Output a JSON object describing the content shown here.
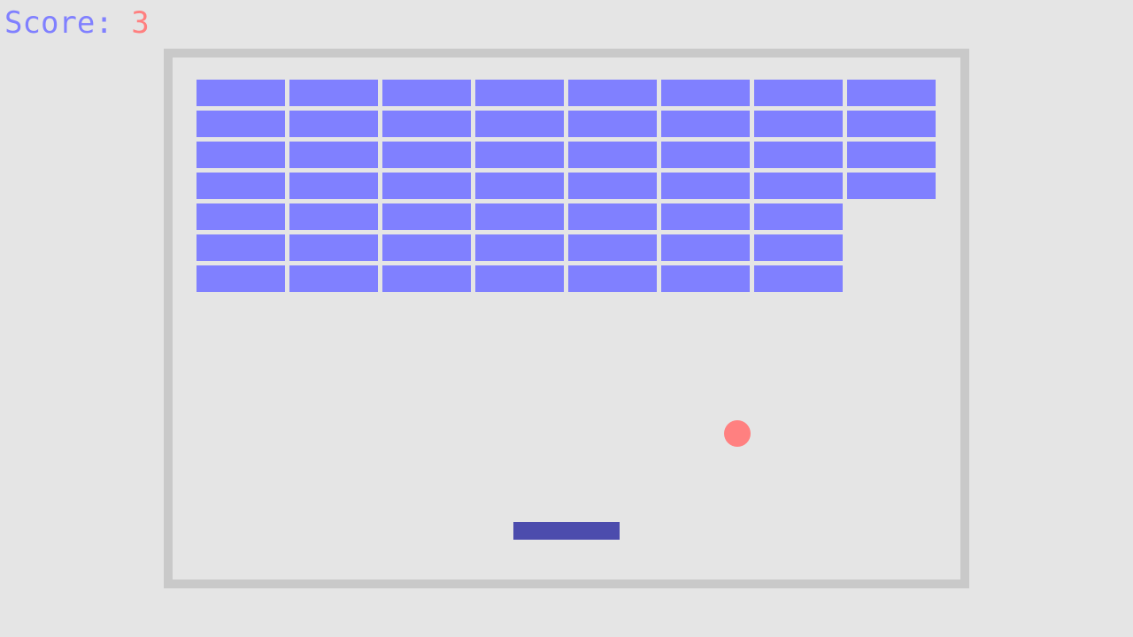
{
  "hud": {
    "score_label": "Score: ",
    "score_value": "3"
  },
  "colors": {
    "background": "#e5e5e5",
    "field_border": "#c9c9c9",
    "brick": "#8080ff",
    "ball": "#ff8080",
    "paddle": "#4c4cad",
    "score_label": "#8080ff",
    "score_value": "#ff8080"
  },
  "bricks": {
    "columns": 8,
    "rows": 7,
    "remaining_per_column": [
      7,
      7,
      7,
      7,
      7,
      7,
      7,
      4
    ],
    "total_remaining": 53
  }
}
